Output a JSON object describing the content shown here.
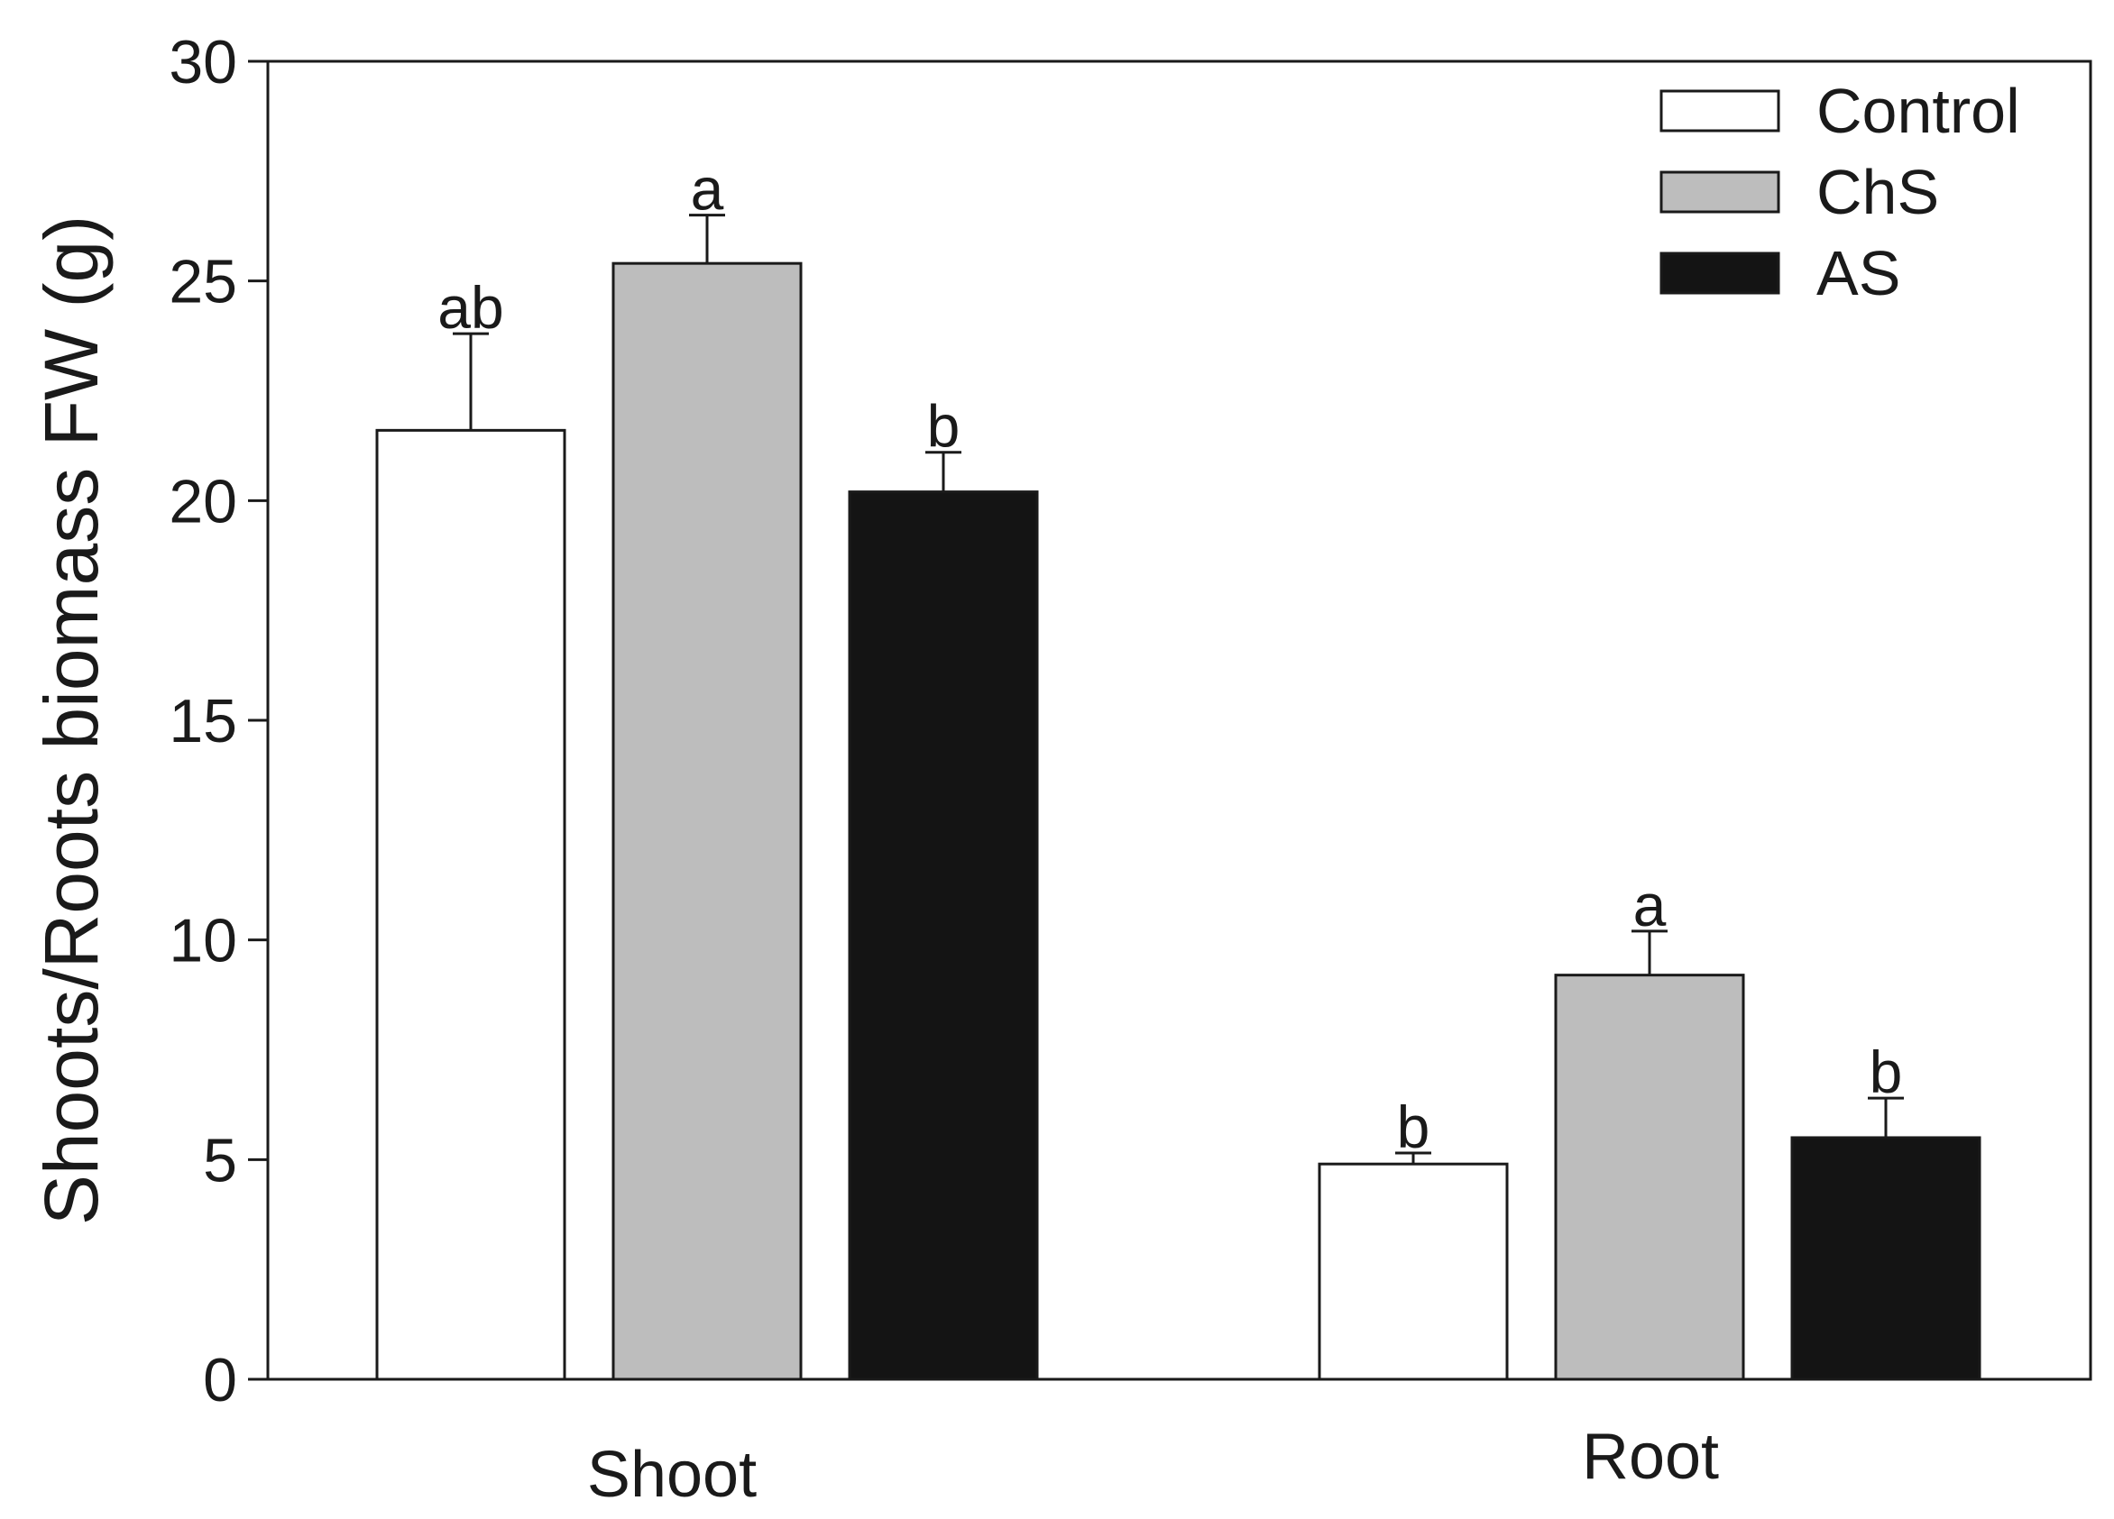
{
  "chart_data": {
    "type": "bar",
    "categories": [
      "Shoot",
      "Root"
    ],
    "ylabel": "Shoots/Roots biomass  FW (g)",
    "xlabel": "",
    "ylim": [
      0,
      30
    ],
    "yticks": [
      0,
      5,
      10,
      15,
      20,
      25,
      30
    ],
    "legend_position": "top-right",
    "grid": false,
    "series": [
      {
        "name": "Control",
        "color": "#ffffff",
        "values": [
          21.6,
          4.9
        ],
        "errors": [
          2.2,
          0.25
        ],
        "significance": [
          "ab",
          "b"
        ]
      },
      {
        "name": "ChS",
        "color": "#bdbdbd",
        "values": [
          25.4,
          9.2
        ],
        "errors": [
          1.1,
          1.0
        ],
        "significance": [
          "a",
          "a"
        ]
      },
      {
        "name": "AS",
        "color": "#141414",
        "values": [
          20.2,
          5.5
        ],
        "errors": [
          0.9,
          0.9
        ],
        "significance": [
          "b",
          "b"
        ]
      }
    ]
  }
}
